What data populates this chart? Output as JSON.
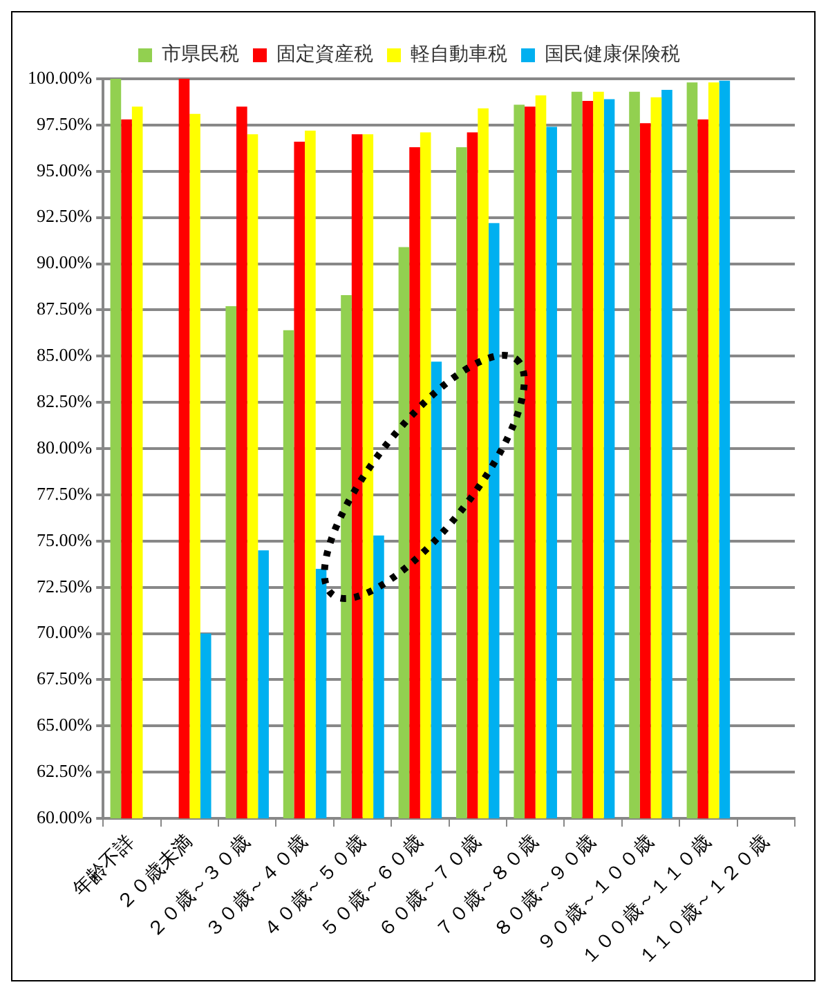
{
  "chart_data": {
    "type": "bar",
    "categories": [
      "年齢不詳",
      "２０歳未満",
      "２０歳～３０歳",
      "３０歳～４０歳",
      "４０歳～５０歳",
      "５０歳～６０歳",
      "６０歳～７０歳",
      "７０歳～８０歳",
      "８０歳～９０歳",
      "９０歳～１００歳",
      "１００歳～１１０歳",
      "１１０歳～１２０歳"
    ],
    "series": [
      {
        "name": "市県民税",
        "color": "#92d050",
        "values": [
          100.0,
          null,
          87.7,
          86.4,
          88.3,
          90.9,
          96.3,
          98.6,
          99.3,
          99.3,
          99.8,
          null
        ]
      },
      {
        "name": "固定資産税",
        "color": "#ff0000",
        "values": [
          97.8,
          100.0,
          98.5,
          96.6,
          97.0,
          96.3,
          97.1,
          98.5,
          98.8,
          97.6,
          97.8,
          null
        ]
      },
      {
        "name": "軽自動車税",
        "color": "#ffff00",
        "values": [
          98.5,
          98.1,
          97.0,
          97.2,
          97.0,
          97.1,
          98.4,
          99.1,
          99.3,
          99.0,
          99.8,
          null
        ]
      },
      {
        "name": "国民健康保険税",
        "color": "#00b0f0",
        "values": [
          null,
          70.0,
          74.5,
          73.5,
          75.3,
          84.7,
          92.2,
          97.4,
          98.9,
          99.4,
          99.9,
          null
        ]
      }
    ],
    "ylim": [
      60,
      100
    ],
    "yticks": [
      {
        "value": 60,
        "label": "60.00%"
      },
      {
        "value": 62.5,
        "label": "62.50%"
      },
      {
        "value": 65,
        "label": "65.00%"
      },
      {
        "value": 67.5,
        "label": "67.50%"
      },
      {
        "value": 70,
        "label": "70.00%"
      },
      {
        "value": 72.5,
        "label": "72.50%"
      },
      {
        "value": 75,
        "label": "75.00%"
      },
      {
        "value": 77.5,
        "label": "77.50%"
      },
      {
        "value": 80,
        "label": "80.00%"
      },
      {
        "value": 82.5,
        "label": "82.50%"
      },
      {
        "value": 85,
        "label": "85.00%"
      },
      {
        "value": 87.5,
        "label": "87.50%"
      },
      {
        "value": 90,
        "label": "90.00%"
      },
      {
        "value": 92.5,
        "label": "92.50%"
      },
      {
        "value": 95,
        "label": "95.00%"
      },
      {
        "value": 97.5,
        "label": "97.50%"
      },
      {
        "value": 100,
        "label": "100.00%"
      }
    ],
    "grid": "y",
    "legend": "top"
  }
}
